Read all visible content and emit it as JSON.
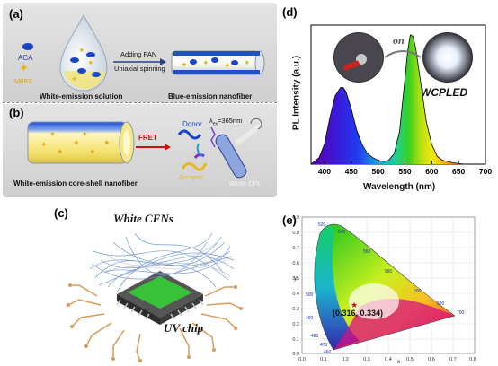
{
  "panels": {
    "a": {
      "tag": "(a)",
      "label_aca": "ACA",
      "label_mbbs": "MBBS",
      "arrow_top": "Adding PAN",
      "arrow_bottom": "Uniaxial spinning",
      "caption_left": "White-emission solution",
      "caption_right": "Blue-emission nanofiber"
    },
    "b": {
      "tag": "(b)",
      "fret": "FRET",
      "donor": "Donor",
      "acceptor": "Acceptor",
      "excitation": "λ",
      "excitation_sub": "ex",
      "excitation_value": "=365nm",
      "white_cpl": "White CPL",
      "caption": "White-emission core-shell nanofiber"
    },
    "c": {
      "tag": "(c)",
      "title": "White CFNs",
      "chip_label": "UV chip"
    },
    "d": {
      "tag": "(d)",
      "on_label": "on",
      "device_label": "WCPLED",
      "ylabel": "PL Intensity (a.u.)",
      "xlabel": "Wavelength (nm)",
      "xticks": [
        "400",
        "450",
        "500",
        "550",
        "600",
        "650",
        "700"
      ]
    },
    "e": {
      "tag": "(e)",
      "coord": "(0.316, 0.334)",
      "yaxis_letter": "y",
      "xaxis_letter": "x",
      "yticks": [
        "0.9",
        "0.8",
        "0.7",
        "0.6",
        "0.5",
        "0.4",
        "0.3",
        "0.2",
        "0.1",
        "0.0"
      ],
      "xticks": [
        "0.0",
        "0.1",
        "0.2",
        "0.3",
        "0.4",
        "0.5",
        "0.6",
        "0.7",
        "0.8"
      ],
      "locus_labels": [
        "520",
        "540",
        "560",
        "580",
        "600",
        "620",
        "700",
        "500",
        "490",
        "480",
        "470",
        "460"
      ]
    }
  },
  "chart_data": {
    "type": "line",
    "xlabel": "Wavelength (nm)",
    "ylabel": "PL Intensity (a.u.)",
    "xlim": [
      375,
      700
    ],
    "x": [
      375,
      390,
      400,
      410,
      420,
      430,
      435,
      440,
      450,
      460,
      470,
      480,
      490,
      500,
      510,
      520,
      530,
      540,
      550,
      555,
      560,
      565,
      570,
      580,
      590,
      600,
      610,
      620,
      640,
      660,
      700
    ],
    "series": [
      {
        "name": "WCPLED",
        "values": [
          0.0,
          0.05,
          0.15,
          0.35,
          0.52,
          0.58,
          0.58,
          0.55,
          0.42,
          0.26,
          0.15,
          0.08,
          0.05,
          0.03,
          0.02,
          0.03,
          0.08,
          0.25,
          0.65,
          0.85,
          0.98,
          0.97,
          0.88,
          0.6,
          0.32,
          0.15,
          0.06,
          0.03,
          0.01,
          0.0,
          0.0
        ]
      }
    ]
  },
  "colors": {
    "aca_blue": "#1a44c8",
    "mbbs_yellow": "#e6b81c",
    "fret_red": "#cc1010",
    "spectrum_violet": "#5a00a8"
  }
}
